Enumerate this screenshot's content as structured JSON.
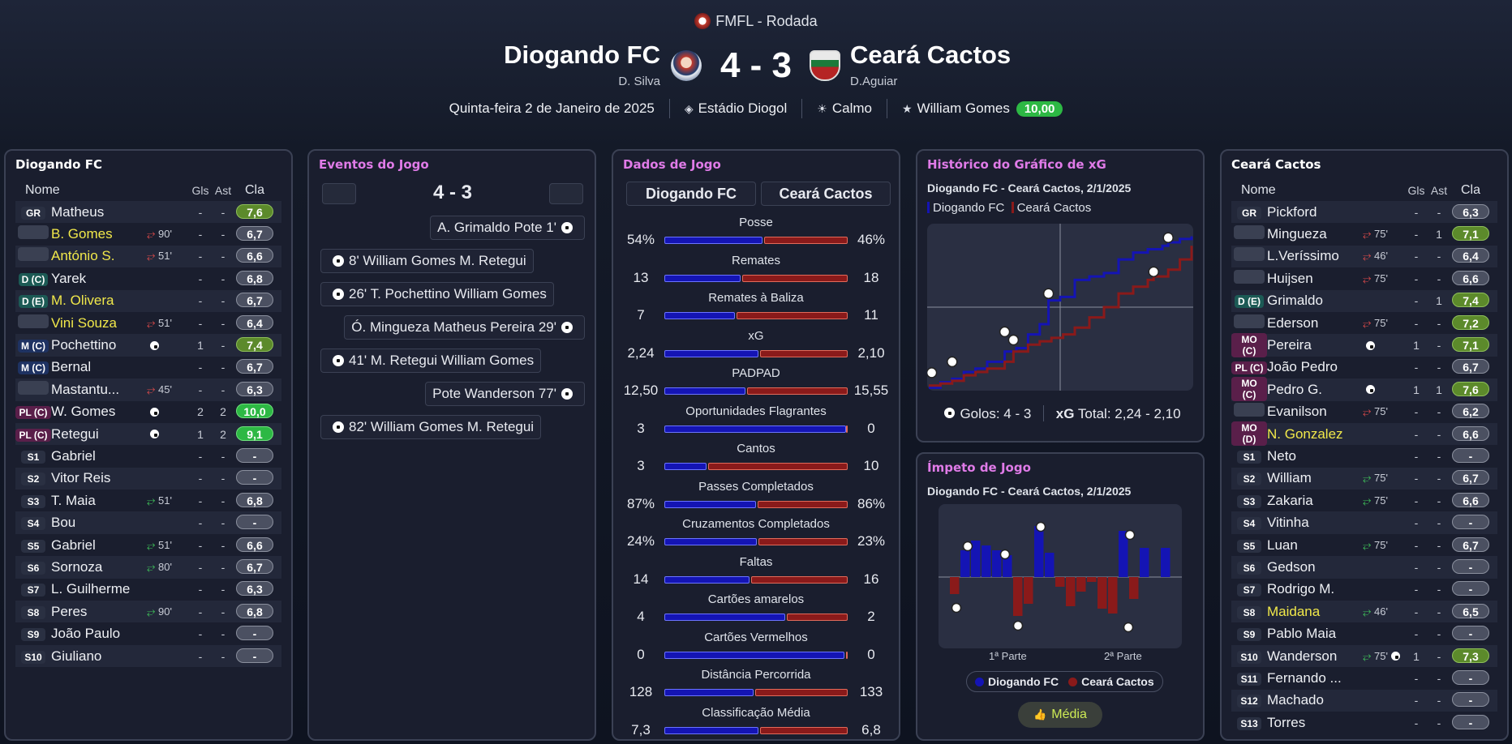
{
  "header": {
    "competition": "FMFL - Rodada",
    "home_team": "Diogando FC",
    "home_coach": "D. Silva",
    "away_team": "Ceará Cactos",
    "away_coach": "D.Aguiar",
    "score": "4 - 3",
    "date": "Quinta-feira 2 de Janeiro de 2025",
    "stadium": "Estádio Diogol",
    "weather": "Calmo",
    "motm_name": "William Gomes",
    "motm_rating": "10,00"
  },
  "colors": {
    "home": "#1414b4",
    "away": "#8a1a1a",
    "accent_pink": "#e07be8",
    "rating_green": "#2db844"
  },
  "home_lineup": {
    "title": "Diogando FC",
    "headers": {
      "name": "Nome",
      "gls": "Gls",
      "ast": "Ast",
      "cla": "Cla"
    },
    "players": [
      {
        "pos": "GR",
        "name": "Matheus",
        "sub": "",
        "gls": "-",
        "ast": "-",
        "cla": "7,6",
        "yellow": false,
        "rt": "good",
        "pc": ""
      },
      {
        "pos": "",
        "name": "B. Gomes",
        "sub": "90'",
        "dir": "out",
        "gls": "-",
        "ast": "-",
        "cla": "6,7",
        "yellow": true,
        "rt": "",
        "pc": "blank"
      },
      {
        "pos": "",
        "name": "António S.",
        "sub": "51'",
        "dir": "out",
        "gls": "-",
        "ast": "-",
        "cla": "6,6",
        "yellow": true,
        "rt": "",
        "pc": "blank"
      },
      {
        "pos": "D (C)",
        "name": "Yarek",
        "sub": "",
        "gls": "-",
        "ast": "-",
        "cla": "6,8",
        "yellow": false,
        "rt": "",
        "pc": "def"
      },
      {
        "pos": "D (E)",
        "name": "M. Olivera",
        "sub": "",
        "gls": "-",
        "ast": "-",
        "cla": "6,7",
        "yellow": true,
        "rt": "",
        "pc": "def"
      },
      {
        "pos": "",
        "name": "Vini Souza",
        "sub": "51'",
        "dir": "out",
        "gls": "-",
        "ast": "-",
        "cla": "6,4",
        "yellow": true,
        "rt": "",
        "pc": "blank"
      },
      {
        "pos": "M (C)",
        "name": "Pochettino",
        "sub": "",
        "gls": "1",
        "ast": "-",
        "cla": "7,4",
        "yellow": false,
        "rt": "good",
        "pc": "mid",
        "goalicon": true
      },
      {
        "pos": "M (C)",
        "name": "Bernal",
        "sub": "",
        "gls": "-",
        "ast": "-",
        "cla": "6,7",
        "yellow": false,
        "rt": "",
        "pc": "mid"
      },
      {
        "pos": "",
        "name": "Mastantu...",
        "sub": "45'",
        "dir": "out",
        "gls": "-",
        "ast": "-",
        "cla": "6,3",
        "yellow": false,
        "rt": "",
        "pc": "blank"
      },
      {
        "pos": "PL (C)",
        "name": "W. Gomes",
        "sub": "",
        "gls": "2",
        "ast": "2",
        "cla": "10,0",
        "yellow": false,
        "rt": "great",
        "pc": "fwd",
        "goalicon": true
      },
      {
        "pos": "PL (C)",
        "name": "Retegui",
        "sub": "",
        "gls": "1",
        "ast": "2",
        "cla": "9,1",
        "yellow": false,
        "rt": "great",
        "pc": "fwd",
        "goalicon": true
      },
      {
        "pos": "S1",
        "name": "Gabriel",
        "sub": "",
        "gls": "-",
        "ast": "-",
        "cla": "-",
        "yellow": false,
        "rt": "",
        "pc": ""
      },
      {
        "pos": "S2",
        "name": "Vitor Reis",
        "sub": "",
        "gls": "-",
        "ast": "-",
        "cla": "-",
        "yellow": false,
        "rt": "",
        "pc": ""
      },
      {
        "pos": "S3",
        "name": "T. Maia",
        "sub": "51'",
        "dir": "in",
        "gls": "-",
        "ast": "-",
        "cla": "6,8",
        "yellow": false,
        "rt": "",
        "pc": ""
      },
      {
        "pos": "S4",
        "name": "Bou",
        "sub": "",
        "gls": "-",
        "ast": "-",
        "cla": "-",
        "yellow": false,
        "rt": "",
        "pc": ""
      },
      {
        "pos": "S5",
        "name": "Gabriel",
        "sub": "51'",
        "dir": "in",
        "gls": "-",
        "ast": "-",
        "cla": "6,6",
        "yellow": false,
        "rt": "",
        "pc": ""
      },
      {
        "pos": "S6",
        "name": "Sornoza",
        "sub": "80'",
        "dir": "in",
        "gls": "-",
        "ast": "-",
        "cla": "6,7",
        "yellow": false,
        "rt": "",
        "pc": ""
      },
      {
        "pos": "S7",
        "name": "L. Guilherme",
        "sub": "",
        "gls": "-",
        "ast": "-",
        "cla": "6,3",
        "yellow": false,
        "rt": "",
        "pc": ""
      },
      {
        "pos": "S8",
        "name": "Peres",
        "sub": "90'",
        "dir": "in",
        "gls": "-",
        "ast": "-",
        "cla": "6,8",
        "yellow": false,
        "rt": "",
        "pc": ""
      },
      {
        "pos": "S9",
        "name": "João Paulo",
        "sub": "",
        "gls": "-",
        "ast": "-",
        "cla": "-",
        "yellow": false,
        "rt": "",
        "pc": ""
      },
      {
        "pos": "S10",
        "name": "Giuliano",
        "sub": "",
        "gls": "-",
        "ast": "-",
        "cla": "-",
        "yellow": false,
        "rt": "",
        "pc": ""
      }
    ]
  },
  "away_lineup": {
    "title": "Ceará Cactos",
    "headers": {
      "name": "Nome",
      "gls": "Gls",
      "ast": "Ast",
      "cla": "Cla"
    },
    "players": [
      {
        "pos": "GR",
        "name": "Pickford",
        "sub": "",
        "gls": "-",
        "ast": "-",
        "cla": "6,3",
        "yellow": false,
        "rt": "",
        "pc": ""
      },
      {
        "pos": "",
        "name": "Mingueza",
        "sub": "75'",
        "dir": "out",
        "gls": "-",
        "ast": "1",
        "cla": "7,1",
        "yellow": false,
        "rt": "good",
        "pc": "blank"
      },
      {
        "pos": "",
        "name": "L.Veríssimo",
        "sub": "46'",
        "dir": "out",
        "gls": "-",
        "ast": "-",
        "cla": "6,4",
        "yellow": false,
        "rt": "",
        "pc": "blank"
      },
      {
        "pos": "",
        "name": "Huijsen",
        "sub": "75'",
        "dir": "out",
        "gls": "-",
        "ast": "-",
        "cla": "6,6",
        "yellow": false,
        "rt": "",
        "pc": "blank"
      },
      {
        "pos": "D (E)",
        "name": "Grimaldo",
        "sub": "",
        "gls": "-",
        "ast": "1",
        "cla": "7,4",
        "yellow": false,
        "rt": "good",
        "pc": "def"
      },
      {
        "pos": "",
        "name": "Ederson",
        "sub": "75'",
        "dir": "out",
        "gls": "-",
        "ast": "-",
        "cla": "7,2",
        "yellow": false,
        "rt": "good",
        "pc": "blank"
      },
      {
        "pos": "MO (C)",
        "name": "Pereira",
        "sub": "",
        "gls": "1",
        "ast": "-",
        "cla": "7,1",
        "yellow": false,
        "rt": "good",
        "pc": "fwd",
        "goalicon": true
      },
      {
        "pos": "PL (C)",
        "name": "João Pedro",
        "sub": "",
        "gls": "-",
        "ast": "-",
        "cla": "6,7",
        "yellow": false,
        "rt": "",
        "pc": "fwd"
      },
      {
        "pos": "MO (C)",
        "name": "Pedro G.",
        "sub": "",
        "gls": "1",
        "ast": "1",
        "cla": "7,6",
        "yellow": false,
        "rt": "good",
        "pc": "fwd",
        "goalicon": true
      },
      {
        "pos": "",
        "name": "Evanilson",
        "sub": "75'",
        "dir": "out",
        "gls": "-",
        "ast": "-",
        "cla": "6,2",
        "yellow": false,
        "rt": "",
        "pc": "blank"
      },
      {
        "pos": "MO (D)",
        "name": "N. Gonzalez",
        "sub": "",
        "gls": "-",
        "ast": "-",
        "cla": "6,6",
        "yellow": true,
        "rt": "",
        "pc": "fwd"
      },
      {
        "pos": "S1",
        "name": "Neto",
        "sub": "",
        "gls": "-",
        "ast": "-",
        "cla": "-",
        "yellow": false,
        "rt": "",
        "pc": ""
      },
      {
        "pos": "S2",
        "name": "William",
        "sub": "75'",
        "dir": "in",
        "gls": "-",
        "ast": "-",
        "cla": "6,7",
        "yellow": false,
        "rt": "",
        "pc": ""
      },
      {
        "pos": "S3",
        "name": "Zakaria",
        "sub": "75'",
        "dir": "in",
        "gls": "-",
        "ast": "-",
        "cla": "6,6",
        "yellow": false,
        "rt": "",
        "pc": ""
      },
      {
        "pos": "S4",
        "name": "Vitinha",
        "sub": "",
        "gls": "-",
        "ast": "-",
        "cla": "-",
        "yellow": false,
        "rt": "",
        "pc": ""
      },
      {
        "pos": "S5",
        "name": "Luan",
        "sub": "75'",
        "dir": "in",
        "gls": "-",
        "ast": "-",
        "cla": "6,7",
        "yellow": false,
        "rt": "",
        "pc": ""
      },
      {
        "pos": "S6",
        "name": "Gedson",
        "sub": "",
        "gls": "-",
        "ast": "-",
        "cla": "-",
        "yellow": false,
        "rt": "",
        "pc": ""
      },
      {
        "pos": "S7",
        "name": "Rodrigo M.",
        "sub": "",
        "gls": "-",
        "ast": "-",
        "cla": "-",
        "yellow": false,
        "rt": "",
        "pc": ""
      },
      {
        "pos": "S8",
        "name": "Maidana",
        "sub": "46'",
        "dir": "in",
        "gls": "-",
        "ast": "-",
        "cla": "6,5",
        "yellow": true,
        "rt": "",
        "pc": ""
      },
      {
        "pos": "S9",
        "name": "Pablo Maia",
        "sub": "",
        "gls": "-",
        "ast": "-",
        "cla": "-",
        "yellow": false,
        "rt": "",
        "pc": ""
      },
      {
        "pos": "S10",
        "name": "Wanderson",
        "sub": "75'",
        "dir": "in",
        "gls": "1",
        "ast": "-",
        "cla": "7,3",
        "yellow": false,
        "rt": "good",
        "pc": "",
        "goalicon": true
      },
      {
        "pos": "S11",
        "name": "Fernando ...",
        "sub": "",
        "gls": "-",
        "ast": "-",
        "cla": "-",
        "yellow": false,
        "rt": "",
        "pc": ""
      },
      {
        "pos": "S12",
        "name": "Machado",
        "sub": "",
        "gls": "-",
        "ast": "-",
        "cla": "-",
        "yellow": false,
        "rt": "",
        "pc": ""
      },
      {
        "pos": "S13",
        "name": "Torres",
        "sub": "",
        "gls": "-",
        "ast": "-",
        "cla": "-",
        "yellow": false,
        "rt": "",
        "pc": ""
      }
    ]
  },
  "events": {
    "title": "Eventos do Jogo",
    "score": "4 - 3",
    "items": [
      {
        "side": "away",
        "text": "A. Grimaldo Pote 1'"
      },
      {
        "side": "home",
        "text": "8' William Gomes M. Retegui"
      },
      {
        "side": "home",
        "text": "26' T. Pochettino William Gomes"
      },
      {
        "side": "away",
        "text": "Ó. Mingueza Matheus Pereira 29'"
      },
      {
        "side": "home",
        "text": "41' M. Retegui William Gomes"
      },
      {
        "side": "away",
        "text": "Pote Wanderson 77'"
      },
      {
        "side": "home",
        "text": "82' William Gomes M. Retegui"
      }
    ]
  },
  "stats": {
    "title": "Dados de Jogo",
    "home_label": "Diogando FC",
    "away_label": "Ceará Cactos",
    "rows": [
      {
        "label": "Posse",
        "home": "54%",
        "away": "46%",
        "h": 54,
        "a": 46
      },
      {
        "label": "Remates",
        "home": "13",
        "away": "18",
        "h": 13,
        "a": 18
      },
      {
        "label": "Remates à Baliza",
        "home": "7",
        "away": "11",
        "h": 7,
        "a": 11
      },
      {
        "label": "xG",
        "home": "2,24",
        "away": "2,10",
        "h": 2.24,
        "a": 2.1
      },
      {
        "label": "PADPAD",
        "home": "12,50",
        "away": "15,55",
        "h": 12.5,
        "a": 15.55
      },
      {
        "label": "Oportunidades Flagrantes",
        "home": "3",
        "away": "0",
        "h": 3,
        "a": 0
      },
      {
        "label": "Cantos",
        "home": "3",
        "away": "10",
        "h": 3,
        "a": 10
      },
      {
        "label": "Passes Completados",
        "home": "87%",
        "away": "86%",
        "h": 87,
        "a": 86
      },
      {
        "label": "Cruzamentos Completados",
        "home": "24%",
        "away": "23%",
        "h": 24,
        "a": 23
      },
      {
        "label": "Faltas",
        "home": "14",
        "away": "16",
        "h": 14,
        "a": 16
      },
      {
        "label": "Cartões amarelos",
        "home": "4",
        "away": "2",
        "h": 4,
        "a": 2
      },
      {
        "label": "Cartões Vermelhos",
        "home": "0",
        "away": "0",
        "h": 0,
        "a": 0
      },
      {
        "label": "Distância Percorrida",
        "home": "128",
        "away": "133",
        "h": 128,
        "a": 133
      },
      {
        "label": "Classificação Média",
        "home": "7,3",
        "away": "6,8",
        "h": 7.3,
        "a": 6.8
      }
    ]
  },
  "xg_panel": {
    "title": "Histórico do Gráfico de xG",
    "subtitle": "Diogando FC - Ceará Cactos, 2/1/2025",
    "legend_home": "Diogando FC",
    "legend_away": "Ceará Cactos",
    "goals_label": "Golos: 4 - 3",
    "xg_prefix": "xG",
    "xg_total": "Total: 2,24 - 2,10"
  },
  "momentum_panel": {
    "title": "Ímpeto de Jogo",
    "subtitle": "Diogando FC - Ceará Cactos, 2/1/2025",
    "half1": "1ª Parte",
    "half2": "2ª Parte",
    "legend_home": "Diogando FC",
    "legend_away": "Ceará Cactos",
    "button": "Média"
  },
  "chart_data": [
    {
      "type": "line",
      "series": [
        {
          "name": "Diogando FC",
          "x": [
            0,
            4,
            8,
            12,
            16,
            20,
            26,
            30,
            34,
            38,
            41,
            45,
            50,
            55,
            60,
            65,
            70,
            75,
            80,
            82,
            86,
            90
          ],
          "y": [
            0.02,
            0.1,
            0.15,
            0.25,
            0.3,
            0.4,
            0.55,
            0.6,
            0.8,
            0.95,
            1.3,
            1.35,
            1.6,
            1.65,
            1.7,
            1.9,
            2.0,
            2.05,
            2.1,
            2.15,
            2.2,
            2.24
          ]
        },
        {
          "name": "Ceará Cactos",
          "x": [
            0,
            4,
            8,
            12,
            16,
            20,
            26,
            29,
            34,
            38,
            42,
            46,
            50,
            55,
            60,
            65,
            70,
            75,
            77,
            82,
            86,
            90
          ],
          "y": [
            0.05,
            0.08,
            0.12,
            0.2,
            0.25,
            0.3,
            0.4,
            0.55,
            0.65,
            0.7,
            0.75,
            0.8,
            0.9,
            1.05,
            1.2,
            1.4,
            1.5,
            1.6,
            1.65,
            1.75,
            1.9,
            2.1
          ]
        }
      ],
      "xlim": [
        0,
        90
      ],
      "ylim": [
        0,
        2.4
      ]
    },
    {
      "type": "bar",
      "values": [
        -0.35,
        0.55,
        0.75,
        0.65,
        0.55,
        0.45,
        -0.8,
        -0.55,
        1.05,
        0.5,
        -0.2,
        -0.6,
        -0.3,
        -0.1,
        -0.65,
        -0.75,
        0.95,
        -0.45,
        0.6,
        0.0,
        0.6
      ],
      "series": [
        {
          "name": "Diogando FC"
        },
        {
          "name": "Ceará Cactos"
        }
      ]
    }
  ]
}
